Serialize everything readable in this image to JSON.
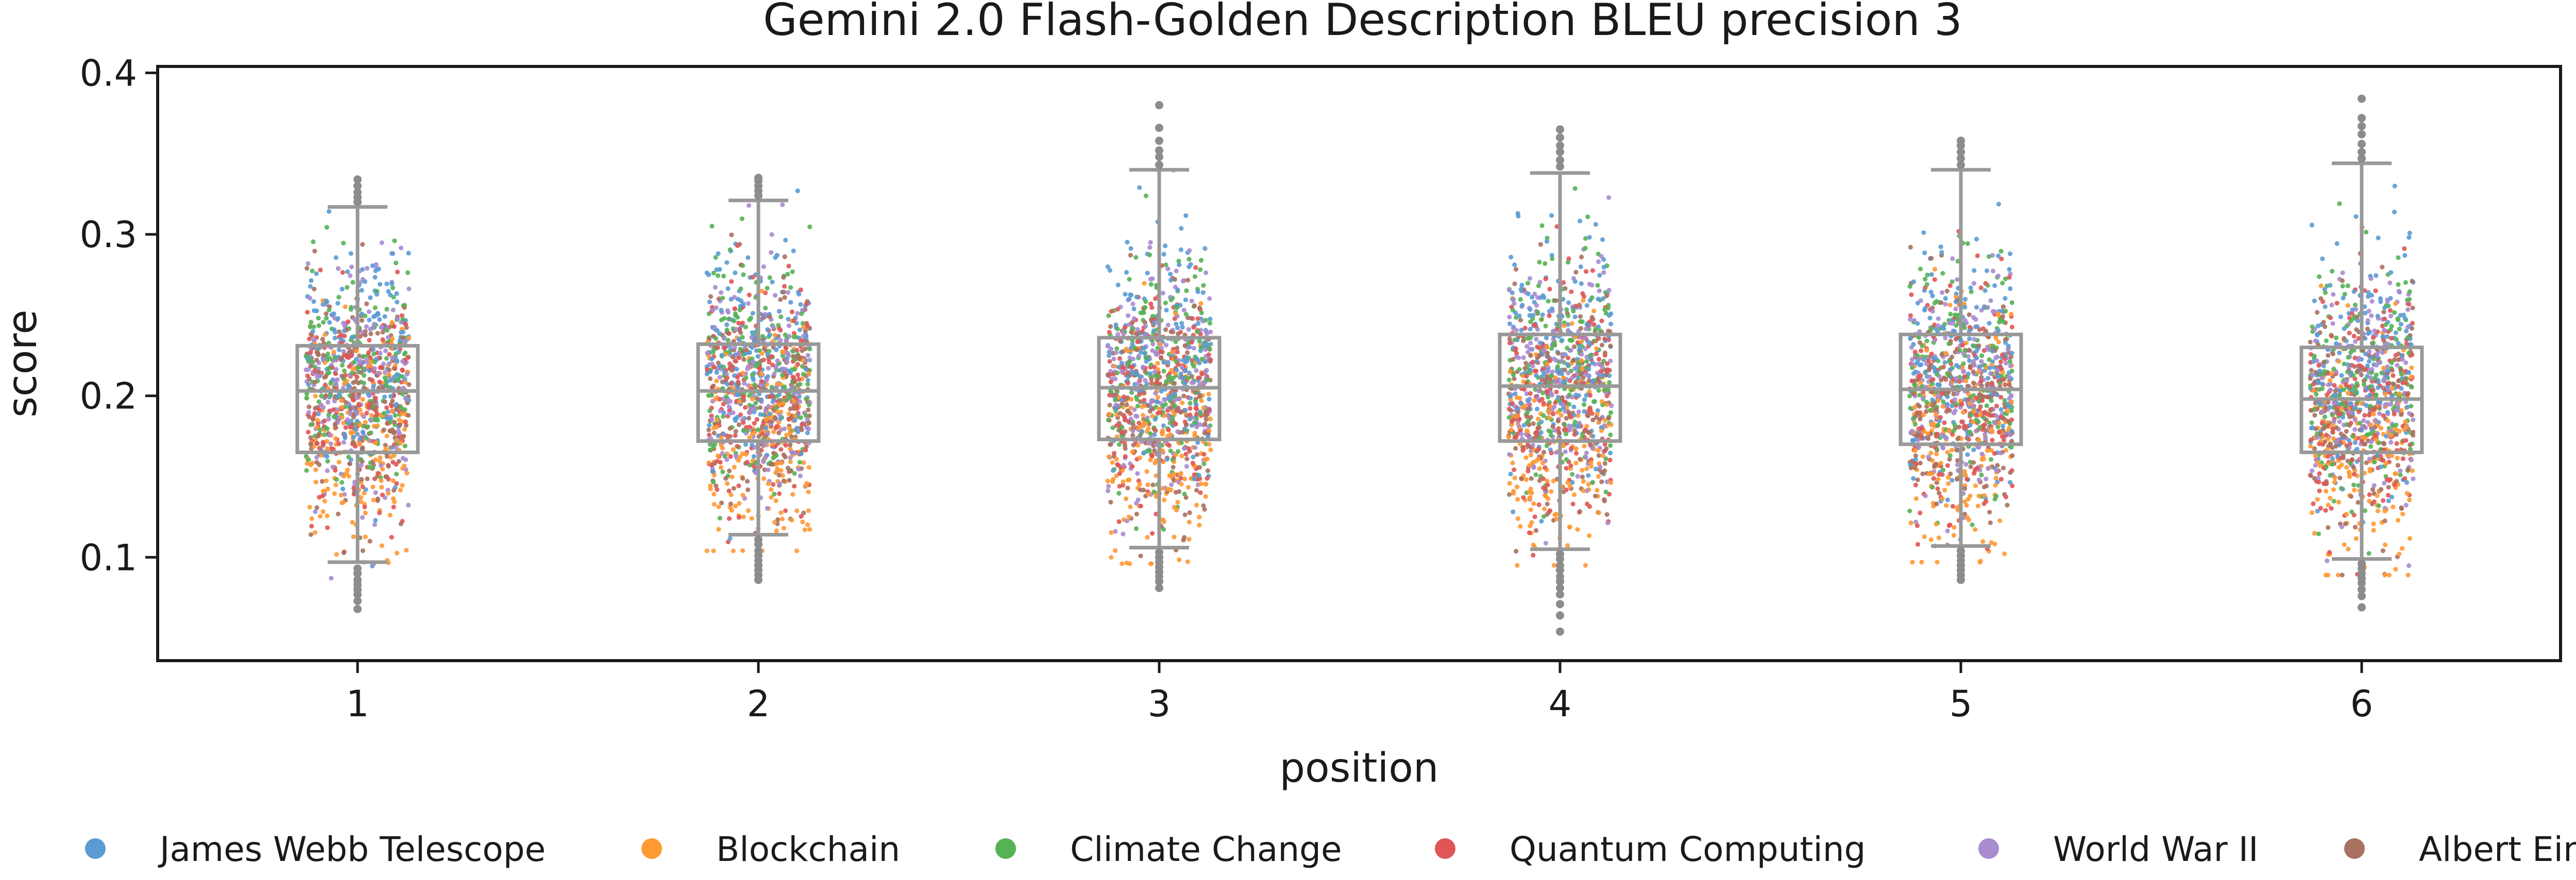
{
  "chart_data": {
    "type": "box-strip",
    "title": "Gemini 2.0 Flash-Golden Description BLEU precision 3",
    "xlabel": "position",
    "ylabel": "score",
    "categories": [
      "1",
      "2",
      "3",
      "4",
      "5",
      "6"
    ],
    "ylim": [
      0.036,
      0.404
    ],
    "yticks": [
      0.1,
      0.2,
      0.3,
      0.4
    ],
    "ytick_labels": [
      "0.1",
      "0.2",
      "0.3",
      "0.4"
    ],
    "grid": false,
    "legend_position": "bottom",
    "box_color": "#999999",
    "boxes": [
      {
        "position": "1",
        "whisker_low": 0.097,
        "q1": 0.165,
        "median": 0.203,
        "q3": 0.231,
        "whisker_high": 0.317,
        "outliers": [
          0.093,
          0.09,
          0.086,
          0.083,
          0.08,
          0.077,
          0.073,
          0.068,
          0.32,
          0.323,
          0.326,
          0.33,
          0.334
        ]
      },
      {
        "position": "2",
        "whisker_low": 0.114,
        "q1": 0.172,
        "median": 0.203,
        "q3": 0.232,
        "whisker_high": 0.321,
        "outliers": [
          0.111,
          0.108,
          0.104,
          0.101,
          0.098,
          0.095,
          0.092,
          0.089,
          0.086,
          0.324,
          0.327,
          0.33,
          0.333,
          0.335
        ]
      },
      {
        "position": "3",
        "whisker_low": 0.106,
        "q1": 0.173,
        "median": 0.205,
        "q3": 0.236,
        "whisker_high": 0.34,
        "outliers": [
          0.103,
          0.1,
          0.097,
          0.094,
          0.091,
          0.088,
          0.085,
          0.081,
          0.343,
          0.348,
          0.352,
          0.358,
          0.366,
          0.38
        ]
      },
      {
        "position": "4",
        "whisker_low": 0.105,
        "q1": 0.172,
        "median": 0.206,
        "q3": 0.238,
        "whisker_high": 0.338,
        "outliers": [
          0.102,
          0.099,
          0.095,
          0.092,
          0.088,
          0.085,
          0.081,
          0.077,
          0.071,
          0.064,
          0.054,
          0.342,
          0.346,
          0.351,
          0.355,
          0.36,
          0.365
        ]
      },
      {
        "position": "5",
        "whisker_low": 0.107,
        "q1": 0.17,
        "median": 0.204,
        "q3": 0.238,
        "whisker_high": 0.34,
        "outliers": [
          0.104,
          0.101,
          0.098,
          0.095,
          0.092,
          0.089,
          0.086,
          0.343,
          0.347,
          0.351,
          0.355,
          0.358
        ]
      },
      {
        "position": "6",
        "whisker_low": 0.099,
        "q1": 0.165,
        "median": 0.198,
        "q3": 0.23,
        "whisker_high": 0.344,
        "outliers": [
          0.096,
          0.093,
          0.09,
          0.087,
          0.084,
          0.08,
          0.076,
          0.069,
          0.347,
          0.351,
          0.356,
          0.362,
          0.367,
          0.372,
          0.384
        ]
      }
    ],
    "series": [
      {
        "name": "James Webb Telescope",
        "color": "#5a9bd4",
        "mean_offset": 0.018
      },
      {
        "name": "Blockchain",
        "color": "#ff9933",
        "mean_offset": -0.032
      },
      {
        "name": "Climate Change",
        "color": "#55b355",
        "mean_offset": 0.012
      },
      {
        "name": "Quantum Computing",
        "color": "#e05555",
        "mean_offset": -0.004
      },
      {
        "name": "World War II",
        "color": "#a98bd0",
        "mean_offset": 0.006
      },
      {
        "name": "Albert Einstein",
        "color": "#aa7060",
        "mean_offset": -0.01
      }
    ],
    "points_per_series_per_position": 180,
    "point_spread_sd": 0.036
  }
}
